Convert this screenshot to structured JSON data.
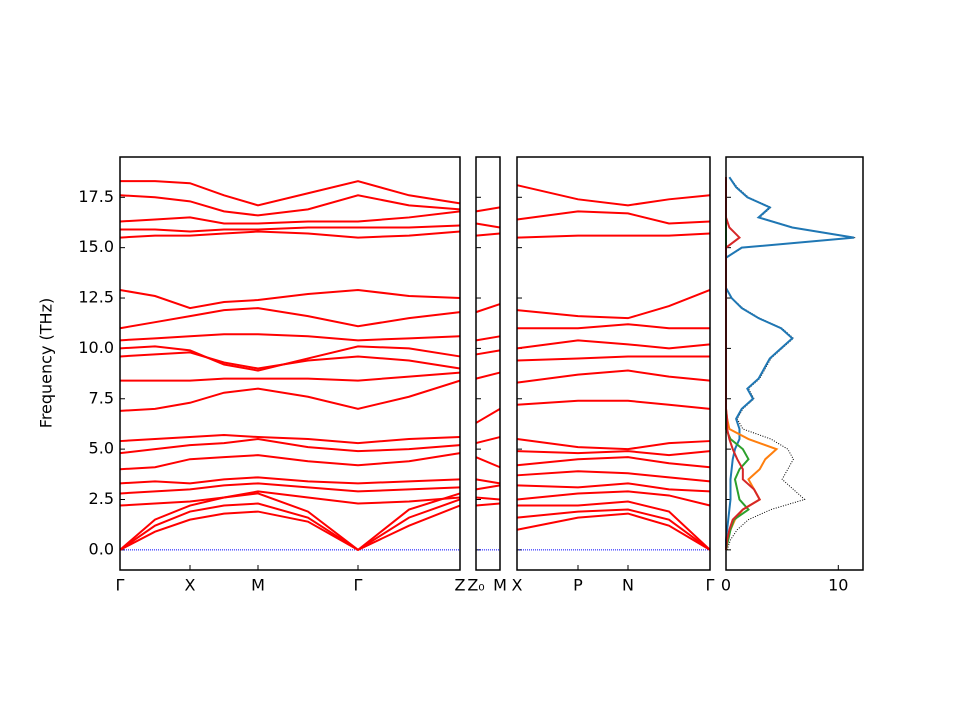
{
  "chart_data": [
    {
      "type": "bands",
      "ylabel": "Frequency (THz)",
      "color": "#ff0000",
      "ylim": [
        -1,
        19.5
      ],
      "yticks": [
        {
          "value": 0,
          "label": "0.0"
        },
        {
          "value": 2.5,
          "label": "2.5"
        },
        {
          "value": 5,
          "label": "5.0"
        },
        {
          "value": 7.5,
          "label": "7.5"
        },
        {
          "value": 10,
          "label": "10.0"
        },
        {
          "value": 12.5,
          "label": "12.5"
        },
        {
          "value": 15,
          "label": "15.0"
        },
        {
          "value": 17.5,
          "label": "17.5"
        }
      ],
      "xlim": [
        0,
        3.4
      ],
      "xticks": [
        {
          "value": 0,
          "label": "Γ"
        },
        {
          "value": 0.7,
          "label": "X"
        },
        {
          "value": 1.38,
          "label": "M"
        },
        {
          "value": 2.38,
          "label": "Γ"
        },
        {
          "value": 3.4,
          "label": "Z"
        }
      ],
      "x": [
        0,
        0.35,
        0.7,
        1.04,
        1.38,
        1.88,
        2.38,
        2.89,
        3.4
      ],
      "bands": [
        [
          0,
          0.9,
          1.5,
          1.8,
          1.9,
          1.4,
          0,
          1.2,
          2.2
        ],
        [
          0,
          1.2,
          1.9,
          2.2,
          2.3,
          1.6,
          0,
          1.6,
          2.5
        ],
        [
          0,
          1.5,
          2.2,
          2.6,
          2.8,
          1.9,
          0,
          2.0,
          2.8
        ],
        [
          2.2,
          2.3,
          2.4,
          2.6,
          2.9,
          2.6,
          2.3,
          2.4,
          2.6
        ],
        [
          2.8,
          2.9,
          3.0,
          3.2,
          3.3,
          3.1,
          2.9,
          3.0,
          3.1
        ],
        [
          3.3,
          3.4,
          3.3,
          3.5,
          3.6,
          3.4,
          3.3,
          3.4,
          3.5
        ],
        [
          4.0,
          4.1,
          4.5,
          4.6,
          4.7,
          4.4,
          4.2,
          4.4,
          4.8
        ],
        [
          4.8,
          5.0,
          5.2,
          5.3,
          5.5,
          5.1,
          4.9,
          5.0,
          5.2
        ],
        [
          5.4,
          5.5,
          5.6,
          5.7,
          5.6,
          5.5,
          5.3,
          5.5,
          5.6
        ],
        [
          6.9,
          7.0,
          7.3,
          7.8,
          8.0,
          7.6,
          7.0,
          7.6,
          8.4
        ],
        [
          8.4,
          8.4,
          8.4,
          8.5,
          8.5,
          8.5,
          8.4,
          8.6,
          8.8
        ],
        [
          9.6,
          9.7,
          9.8,
          9.3,
          9.0,
          9.4,
          9.6,
          9.4,
          9.0
        ],
        [
          10.0,
          10.1,
          9.9,
          9.2,
          8.9,
          9.5,
          10.1,
          10.0,
          9.6
        ],
        [
          10.4,
          10.5,
          10.6,
          10.7,
          10.7,
          10.6,
          10.4,
          10.5,
          10.6
        ],
        [
          11.0,
          11.3,
          11.6,
          11.9,
          12.0,
          11.6,
          11.1,
          11.5,
          11.8
        ],
        [
          12.9,
          12.6,
          12.0,
          12.3,
          12.4,
          12.7,
          12.9,
          12.6,
          12.5
        ],
        [
          15.5,
          15.6,
          15.6,
          15.7,
          15.8,
          15.7,
          15.5,
          15.6,
          15.8
        ],
        [
          15.9,
          15.9,
          15.8,
          15.9,
          15.9,
          16.0,
          16.0,
          16.0,
          16.1
        ],
        [
          16.3,
          16.4,
          16.5,
          16.2,
          16.2,
          16.3,
          16.3,
          16.5,
          16.8
        ],
        [
          17.6,
          17.5,
          17.3,
          16.8,
          16.6,
          16.9,
          17.6,
          17.1,
          16.9
        ],
        [
          18.3,
          18.3,
          18.2,
          17.6,
          17.1,
          17.7,
          18.3,
          17.6,
          17.2
        ]
      ]
    },
    {
      "type": "bands",
      "color": "#ff0000",
      "ylim": [
        -1,
        19.5
      ],
      "xlim": [
        0,
        1
      ],
      "xticks": [
        {
          "value": 0,
          "label": "Z₀"
        },
        {
          "value": 1,
          "label": "M"
        }
      ],
      "x": [
        0,
        1
      ],
      "bands": [
        [
          2.2,
          2.3
        ],
        [
          2.6,
          2.5
        ],
        [
          3.0,
          3.2
        ],
        [
          3.5,
          3.3
        ],
        [
          4.6,
          4.1
        ],
        [
          5.3,
          5.6
        ],
        [
          6.3,
          7.0
        ],
        [
          8.5,
          8.8
        ],
        [
          9.7,
          9.9
        ],
        [
          10.4,
          10.6
        ],
        [
          11.8,
          12.2
        ],
        [
          15.6,
          15.7
        ],
        [
          16.2,
          16.0
        ],
        [
          16.8,
          17.0
        ]
      ]
    },
    {
      "type": "bands",
      "color": "#ff0000",
      "ylim": [
        -1,
        19.5
      ],
      "xlim": [
        0,
        1.93
      ],
      "xticks": [
        {
          "value": 0,
          "label": "X"
        },
        {
          "value": 0.61,
          "label": "P"
        },
        {
          "value": 1.11,
          "label": "N"
        },
        {
          "value": 1.93,
          "label": "Γ"
        }
      ],
      "x": [
        0,
        0.61,
        1.11,
        1.52,
        1.93
      ],
      "bands": [
        [
          1.0,
          1.6,
          1.8,
          1.2,
          0
        ],
        [
          1.6,
          1.9,
          2.0,
          1.5,
          0
        ],
        [
          2.2,
          2.2,
          2.4,
          1.9,
          0
        ],
        [
          2.5,
          2.8,
          2.9,
          2.7,
          2.2
        ],
        [
          3.2,
          3.1,
          3.3,
          3.0,
          2.9
        ],
        [
          3.7,
          3.9,
          3.8,
          3.6,
          3.4
        ],
        [
          4.2,
          4.5,
          4.6,
          4.3,
          4.1
        ],
        [
          4.9,
          4.8,
          4.9,
          4.7,
          4.9
        ],
        [
          5.5,
          5.1,
          5.0,
          5.3,
          5.4
        ],
        [
          7.2,
          7.4,
          7.4,
          7.2,
          7.0
        ],
        [
          8.3,
          8.7,
          8.9,
          8.6,
          8.4
        ],
        [
          9.4,
          9.5,
          9.6,
          9.6,
          9.6
        ],
        [
          10.0,
          10.4,
          10.2,
          10.0,
          10.2
        ],
        [
          11.0,
          11.0,
          11.2,
          11.0,
          11.0
        ],
        [
          11.9,
          11.6,
          11.5,
          12.1,
          12.9
        ],
        [
          15.5,
          15.6,
          15.6,
          15.6,
          15.7
        ],
        [
          16.4,
          16.8,
          16.7,
          16.2,
          16.3
        ],
        [
          18.1,
          17.4,
          17.1,
          17.4,
          17.6
        ]
      ]
    },
    {
      "type": "dos",
      "ylim": [
        -1,
        19.5
      ],
      "xlim": [
        0,
        12.2
      ],
      "xticks": [
        0,
        10
      ],
      "y": [
        0,
        0.5,
        1,
        1.5,
        2,
        2.5,
        3,
        3.5,
        4,
        4.5,
        5,
        5.5,
        6,
        6.5,
        7,
        7.5,
        8,
        8.5,
        9,
        9.5,
        10,
        10.5,
        11,
        11.5,
        12,
        12.5,
        13,
        13.5,
        14,
        14.5,
        15,
        15.5,
        16,
        16.5,
        17,
        17.5,
        18,
        18.5
      ],
      "series": [
        {
          "color": "#000000",
          "linestyle": "dotted",
          "values": [
            0.1,
            0.4,
            1,
            2,
            4,
            7,
            6,
            5,
            5.5,
            6,
            5.5,
            4,
            1.5,
            1,
            1.5,
            2.5,
            2,
            3,
            3.5,
            4,
            5,
            6,
            5,
            3,
            1.5,
            0.5,
            0,
            0,
            0,
            0,
            1.5,
            11.5,
            6,
            3,
            4,
            2,
            1,
            0.3
          ]
        },
        {
          "color": "#1f77b4",
          "values": [
            0,
            0,
            0.1,
            0.2,
            0.3,
            0.4,
            0.4,
            0.4,
            0.5,
            0.6,
            0.8,
            1.2,
            1.2,
            0.9,
            1.4,
            2.4,
            1.9,
            2.9,
            3.4,
            3.9,
            4.9,
            5.9,
            4.9,
            2.9,
            1.4,
            0.5,
            0,
            0,
            0,
            0,
            1.4,
            11.4,
            5.9,
            2.9,
            3.9,
            1.9,
            0.9,
            0.3
          ]
        },
        {
          "color": "#ff7f0e",
          "values": [
            0,
            0.1,
            0.4,
            0.8,
            1.5,
            3,
            2.5,
            2,
            3,
            3.5,
            4.5,
            2,
            0.3,
            0.1,
            0,
            0,
            0,
            0,
            0,
            0,
            0,
            0,
            0,
            0,
            0,
            0,
            0,
            0,
            0,
            0,
            0,
            0,
            0,
            0,
            0,
            0,
            0,
            0
          ]
        },
        {
          "color": "#2ca02c",
          "values": [
            0,
            0.2,
            0.4,
            0.7,
            2,
            1.2,
            1,
            0.8,
            1.2,
            2,
            1.5,
            0.4,
            0,
            0,
            0,
            0,
            0,
            0,
            0,
            0,
            0,
            0,
            0,
            0,
            0,
            0,
            0,
            0,
            0,
            0,
            0,
            0,
            0,
            0,
            0,
            0,
            0,
            0
          ]
        },
        {
          "color": "#d62728",
          "values": [
            0,
            0.1,
            0.3,
            0.6,
            1.5,
            3,
            2.5,
            1.5,
            1.5,
            1,
            0.6,
            0.3,
            0.1,
            0.1,
            0,
            0,
            0,
            0,
            0,
            0,
            0,
            0,
            0,
            0,
            0,
            0,
            0,
            0,
            0,
            0,
            0,
            1.2,
            0.3,
            0,
            0,
            0,
            0,
            0
          ]
        }
      ]
    }
  ]
}
